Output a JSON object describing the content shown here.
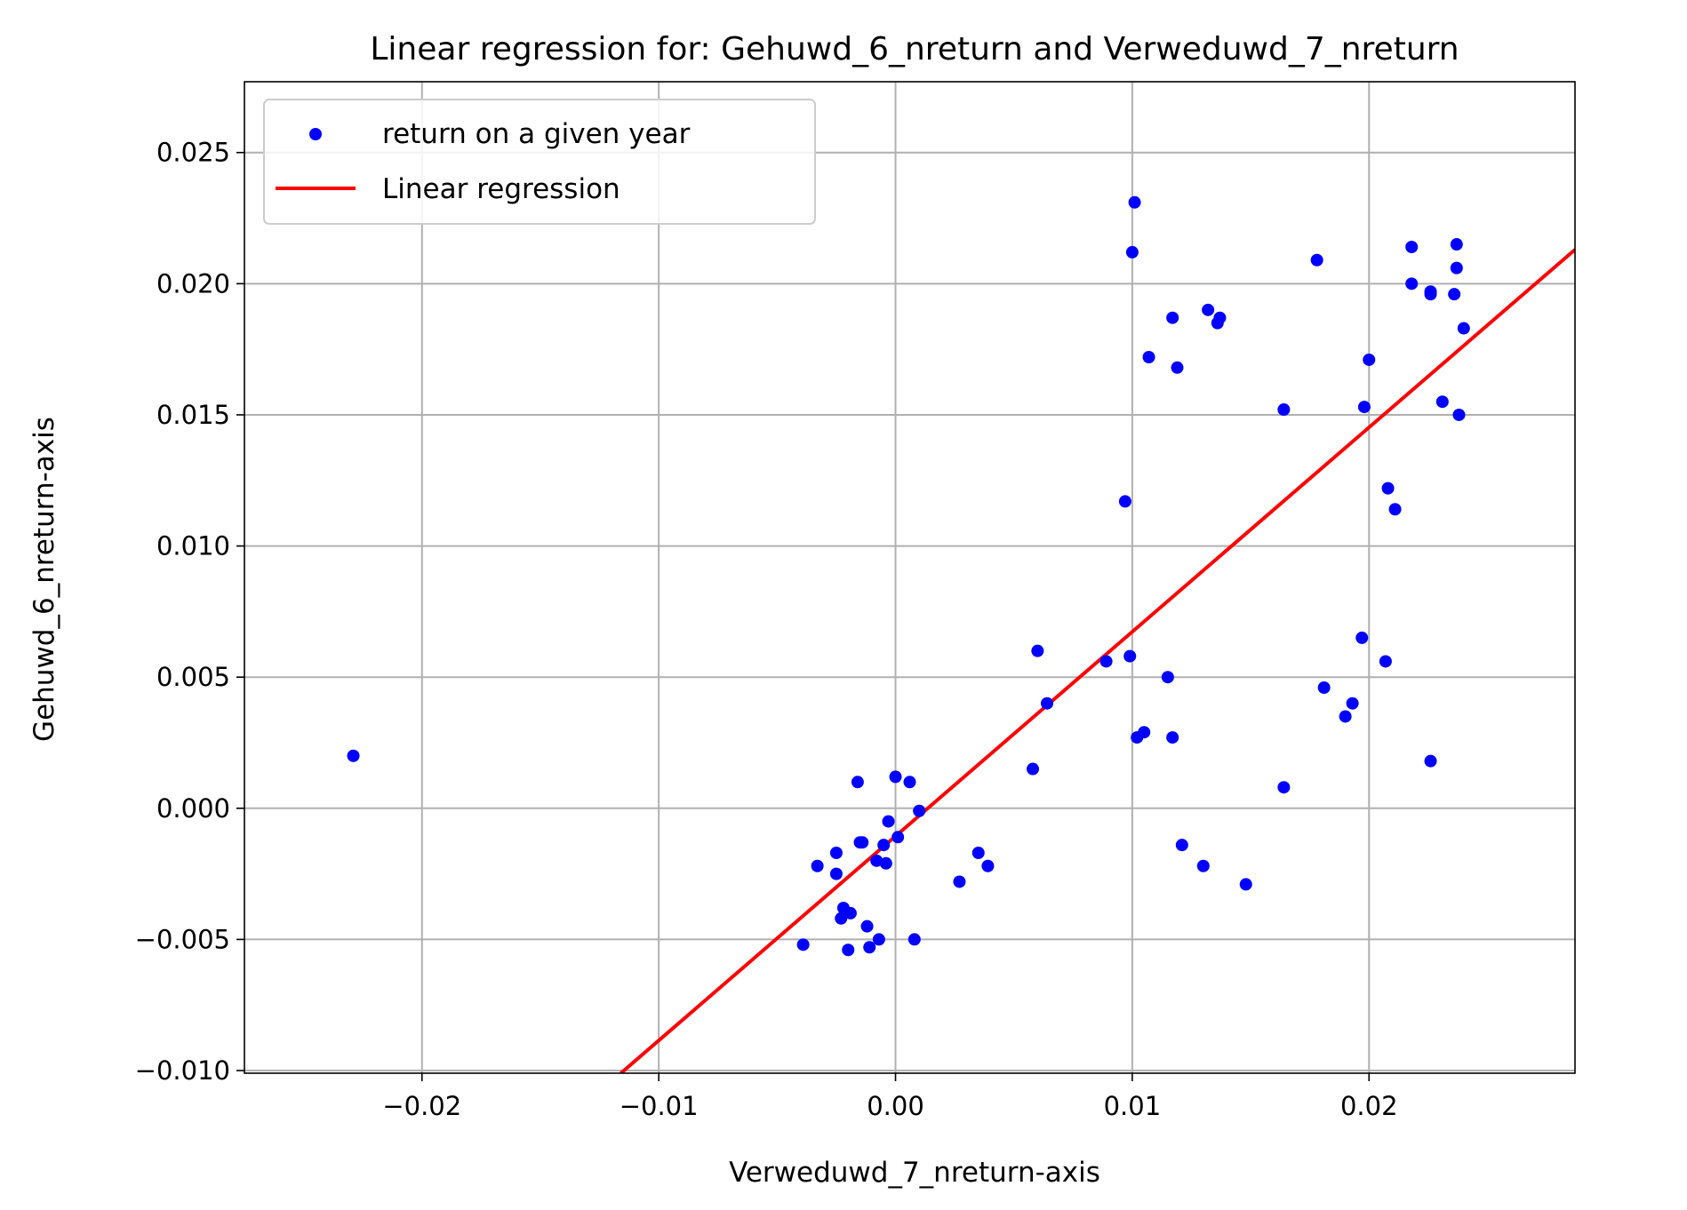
{
  "chart_data": {
    "type": "scatter",
    "title": "Linear regression for: Gehuwd_6_nreturn and Verweduwd_7_nreturn",
    "xlabel": "Verweduwd_7_nreturn-axis",
    "ylabel": "Gehuwd_6_nreturn-axis",
    "xlim": [
      -0.0275,
      0.0287
    ],
    "ylim": [
      -0.0101,
      0.0277
    ],
    "xticks": [
      -0.02,
      -0.01,
      0.0,
      0.01,
      0.02
    ],
    "xtick_labels": [
      "−0.02",
      "−0.01",
      "0.00",
      "0.01",
      "0.02"
    ],
    "yticks": [
      -0.01,
      -0.005,
      0.0,
      0.005,
      0.01,
      0.015,
      0.02,
      0.025
    ],
    "ytick_labels": [
      "−0.010",
      "−0.005",
      "0.000",
      "0.005",
      "0.010",
      "0.015",
      "0.020",
      "0.025"
    ],
    "grid": true,
    "legend_position": "top-left",
    "series": [
      {
        "name": "return on a given year",
        "type": "scatter",
        "color": "#0000ff",
        "points": [
          [
            -0.0229,
            0.002
          ],
          [
            -0.0039,
            -0.0052
          ],
          [
            -0.0033,
            -0.0022
          ],
          [
            -0.0025,
            -0.0017
          ],
          [
            -0.0025,
            -0.0025
          ],
          [
            -0.0023,
            -0.0042
          ],
          [
            -0.0022,
            -0.0038
          ],
          [
            -0.002,
            -0.0054
          ],
          [
            -0.0019,
            -0.004
          ],
          [
            -0.0016,
            0.001
          ],
          [
            -0.0015,
            -0.0013
          ],
          [
            -0.0014,
            -0.0013
          ],
          [
            -0.0012,
            -0.0045
          ],
          [
            -0.0011,
            -0.0053
          ],
          [
            -0.0008,
            -0.002
          ],
          [
            -0.0007,
            -0.005
          ],
          [
            -0.0005,
            -0.0014
          ],
          [
            -0.0004,
            -0.0021
          ],
          [
            -0.0003,
            -0.0005
          ],
          [
            0.0,
            0.0012
          ],
          [
            0.0001,
            -0.0011
          ],
          [
            0.0006,
            0.001
          ],
          [
            0.0008,
            -0.005
          ],
          [
            0.001,
            -0.0001
          ],
          [
            0.0027,
            -0.0028
          ],
          [
            0.0035,
            -0.0017
          ],
          [
            0.0039,
            -0.0022
          ],
          [
            0.0058,
            0.0015
          ],
          [
            0.006,
            0.006
          ],
          [
            0.0064,
            0.004
          ],
          [
            0.0089,
            0.0056
          ],
          [
            0.0097,
            0.0117
          ],
          [
            0.0099,
            0.0058
          ],
          [
            0.01,
            0.0212
          ],
          [
            0.0101,
            0.0231
          ],
          [
            0.0102,
            0.0027
          ],
          [
            0.0105,
            0.0029
          ],
          [
            0.0107,
            0.0172
          ],
          [
            0.0115,
            0.005
          ],
          [
            0.0117,
            0.0187
          ],
          [
            0.0117,
            0.0027
          ],
          [
            0.0119,
            0.0168
          ],
          [
            0.0121,
            -0.0014
          ],
          [
            0.013,
            -0.0022
          ],
          [
            0.0132,
            0.019
          ],
          [
            0.0136,
            0.0185
          ],
          [
            0.0137,
            0.0187
          ],
          [
            0.0148,
            -0.0029
          ],
          [
            0.0164,
            0.0152
          ],
          [
            0.0164,
            0.0008
          ],
          [
            0.0178,
            0.0209
          ],
          [
            0.0181,
            0.0046
          ],
          [
            0.019,
            0.0035
          ],
          [
            0.0193,
            0.004
          ],
          [
            0.0197,
            0.0065
          ],
          [
            0.0198,
            0.0153
          ],
          [
            0.02,
            0.0171
          ],
          [
            0.0207,
            0.0056
          ],
          [
            0.0208,
            0.0122
          ],
          [
            0.0211,
            0.0114
          ],
          [
            0.0218,
            0.0214
          ],
          [
            0.0218,
            0.02
          ],
          [
            0.0226,
            0.0197
          ],
          [
            0.0226,
            0.0196
          ],
          [
            0.0226,
            0.0018
          ],
          [
            0.0231,
            0.0155
          ],
          [
            0.0236,
            0.0196
          ],
          [
            0.0237,
            0.0206
          ],
          [
            0.0237,
            0.0215
          ],
          [
            0.0238,
            0.015
          ],
          [
            0.024,
            0.0183
          ]
        ]
      },
      {
        "name": "Linear regression",
        "type": "line",
        "color": "#ff0000",
        "x": [
          -0.0116,
          0.0287
        ],
        "y": [
          -0.0101,
          0.0213
        ]
      }
    ]
  }
}
